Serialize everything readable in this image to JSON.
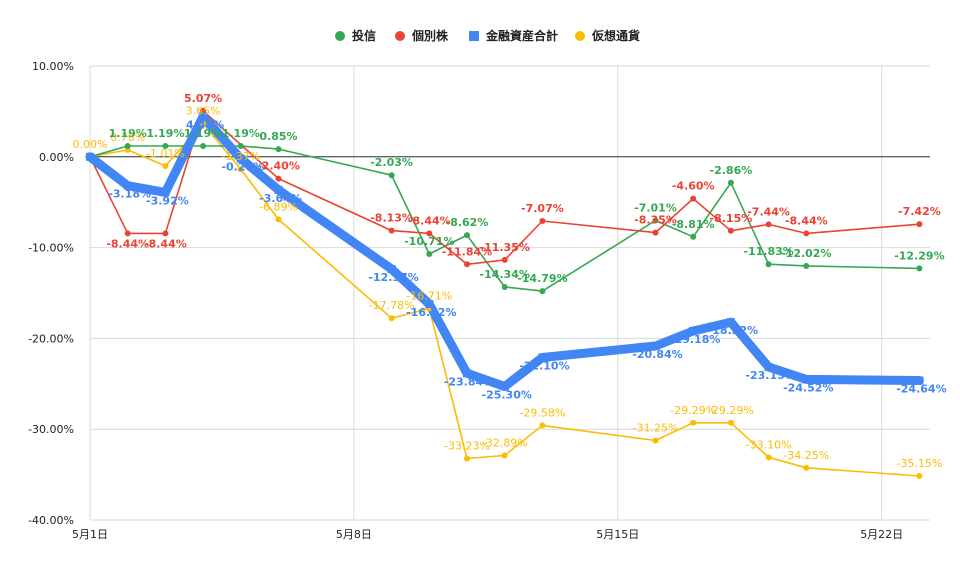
{
  "chart_data": {
    "type": "line",
    "title": "",
    "xlabel": "",
    "ylabel": "",
    "x": [
      "5/1",
      "5/2",
      "5/3",
      "5/4",
      "5/5",
      "5/6",
      "5/7",
      "5/8",
      "5/9",
      "5/10",
      "5/11",
      "5/12",
      "5/13",
      "5/16",
      "5/17",
      "5/18",
      "5/19",
      "5/20",
      "5/23"
    ],
    "x_ticks": [
      "5月1日",
      "5月8日",
      "5月15日",
      "5月22日"
    ],
    "ylim": [
      -40,
      10
    ],
    "y_ticks": [
      "10.00%",
      "0.00%",
      "-10.00%",
      "-20.00%",
      "-30.00%",
      "-40.00%"
    ],
    "legend": {
      "placement": "top-center"
    },
    "series": [
      {
        "name": "投信",
        "color": "#34a853",
        "marker": "circle",
        "points": [
          {
            "x": "2022-05-01",
            "y": 0.0
          },
          {
            "x": "2022-05-02",
            "y": 1.19,
            "label": "1.19%"
          },
          {
            "x": "2022-05-03",
            "y": 1.19,
            "label": "1.19%"
          },
          {
            "x": "2022-05-04",
            "y": 1.19,
            "label": "1.19%"
          },
          {
            "x": "2022-05-05",
            "y": 1.19,
            "label": "1.19%"
          },
          {
            "x": "2022-05-06",
            "y": 0.85,
            "label": "0.85%"
          },
          {
            "x": "2022-05-09",
            "y": -2.03,
            "label": "-2.03%"
          },
          {
            "x": "2022-05-10",
            "y": -10.71,
            "label": "-10.71%"
          },
          {
            "x": "2022-05-11",
            "y": -8.62,
            "label": "-8.62%"
          },
          {
            "x": "2022-05-12",
            "y": -14.34,
            "label": "-14.34%"
          },
          {
            "x": "2022-05-13",
            "y": -14.79,
            "label": "-14.79%"
          },
          {
            "x": "2022-05-16",
            "y": -7.01,
            "label": "-7.01%"
          },
          {
            "x": "2022-05-17",
            "y": -8.81,
            "label": "-8.81%"
          },
          {
            "x": "2022-05-18",
            "y": -2.86,
            "label": "-2.86%"
          },
          {
            "x": "2022-05-19",
            "y": -11.83,
            "label": "-11.83%"
          },
          {
            "x": "2022-05-20",
            "y": -12.02,
            "label": "-12.02%"
          },
          {
            "x": "2022-05-23",
            "y": -12.29,
            "label": "-12.29%"
          }
        ]
      },
      {
        "name": "個別株",
        "color": "#ea4335",
        "marker": "circle",
        "points": [
          {
            "x": "2022-05-01",
            "y": 0.0
          },
          {
            "x": "2022-05-02",
            "y": -8.44,
            "label": "-8.44%"
          },
          {
            "x": "2022-05-03",
            "y": -8.44,
            "label": "-8.44%"
          },
          {
            "x": "2022-05-04",
            "y": 5.07,
            "label": "5.07%"
          },
          {
            "x": "2022-05-06",
            "y": -2.4,
            "label": "-2.40%"
          },
          {
            "x": "2022-05-09",
            "y": -8.13,
            "label": "-8.13%"
          },
          {
            "x": "2022-05-10",
            "y": -8.44,
            "label": "-8.44%"
          },
          {
            "x": "2022-05-11",
            "y": -11.84,
            "label": "-11.84%"
          },
          {
            "x": "2022-05-12",
            "y": -11.35,
            "label": "-11.35%"
          },
          {
            "x": "2022-05-13",
            "y": -7.07,
            "label": "-7.07%"
          },
          {
            "x": "2022-05-16",
            "y": -8.35,
            "label": "-8.35%"
          },
          {
            "x": "2022-05-17",
            "y": -4.6,
            "label": "-4.60%"
          },
          {
            "x": "2022-05-18",
            "y": -8.15,
            "label": "-8.15%"
          },
          {
            "x": "2022-05-19",
            "y": -7.44,
            "label": "-7.44%"
          },
          {
            "x": "2022-05-20",
            "y": -8.44,
            "label": "-8.44%"
          },
          {
            "x": "2022-05-23",
            "y": -7.42,
            "label": "-7.42%"
          }
        ]
      },
      {
        "name": "金融資産合計",
        "color": "#4285f4",
        "marker": "square",
        "points": [
          {
            "x": "2022-05-01",
            "y": 0.0
          },
          {
            "x": "2022-05-02",
            "y": -3.18,
            "label": "-3.18%"
          },
          {
            "x": "2022-05-03",
            "y": -3.92,
            "label": "-3.92%"
          },
          {
            "x": "2022-05-04",
            "y": 4.45,
            "label": "4.45%"
          },
          {
            "x": "2022-05-05",
            "y": -0.2,
            "label": "-0.20%"
          },
          {
            "x": "2022-05-06",
            "y": -3.64,
            "label": "-3.64%"
          },
          {
            "x": "2022-05-09",
            "y": -12.37,
            "label": "-12.37%"
          },
          {
            "x": "2022-05-10",
            "y": -16.22,
            "label": "-16.22%"
          },
          {
            "x": "2022-05-11",
            "y": -23.84,
            "label": "-23.84%"
          },
          {
            "x": "2022-05-12",
            "y": -25.3,
            "label": "-25.30%"
          },
          {
            "x": "2022-05-13",
            "y": -22.1,
            "label": "-22.10%"
          },
          {
            "x": "2022-05-16",
            "y": -20.84,
            "label": "-20.84%"
          },
          {
            "x": "2022-05-17",
            "y": -19.18,
            "label": "-19.18%"
          },
          {
            "x": "2022-05-18",
            "y": -18.22,
            "label": "-18.22%"
          },
          {
            "x": "2022-05-19",
            "y": -23.15,
            "label": "-23.15%"
          },
          {
            "x": "2022-05-20",
            "y": -24.52,
            "label": "-24.52%"
          },
          {
            "x": "2022-05-23",
            "y": -24.64,
            "label": "-24.64%"
          }
        ]
      },
      {
        "name": "仮想通貨",
        "color": "#fbbc04",
        "marker": "circle",
        "points": [
          {
            "x": "2022-05-01",
            "y": 0.0,
            "label": "0.00%"
          },
          {
            "x": "2022-05-02",
            "y": 0.76,
            "label": "0.76%"
          },
          {
            "x": "2022-05-03",
            "y": -1.01,
            "label": "-1.01%"
          },
          {
            "x": "2022-05-04",
            "y": 3.65,
            "label": "3.65%"
          },
          {
            "x": "2022-05-05",
            "y": -1.37,
            "label": "-1.37%"
          },
          {
            "x": "2022-05-06",
            "y": -6.89,
            "label": "-6.89%"
          },
          {
            "x": "2022-05-09",
            "y": -17.78,
            "label": "-17.78%"
          },
          {
            "x": "2022-05-10",
            "y": -16.71,
            "label": "-16.71%"
          },
          {
            "x": "2022-05-11",
            "y": -33.23,
            "label": "-33.23%"
          },
          {
            "x": "2022-05-12",
            "y": -32.89,
            "label": "-32.89%"
          },
          {
            "x": "2022-05-13",
            "y": -29.58,
            "label": "-29.58%"
          },
          {
            "x": "2022-05-16",
            "y": -31.25,
            "label": "-31.25%"
          },
          {
            "x": "2022-05-17",
            "y": -29.29,
            "label": "-29.29%"
          },
          {
            "x": "2022-05-18",
            "y": -29.29,
            "label": "-29.29%"
          },
          {
            "x": "2022-05-19",
            "y": -33.1,
            "label": "-33.10%"
          },
          {
            "x": "2022-05-20",
            "y": -34.25,
            "label": "-34.25%"
          },
          {
            "x": "2022-05-23",
            "y": -35.15,
            "label": "-35.15%"
          }
        ]
      }
    ]
  }
}
